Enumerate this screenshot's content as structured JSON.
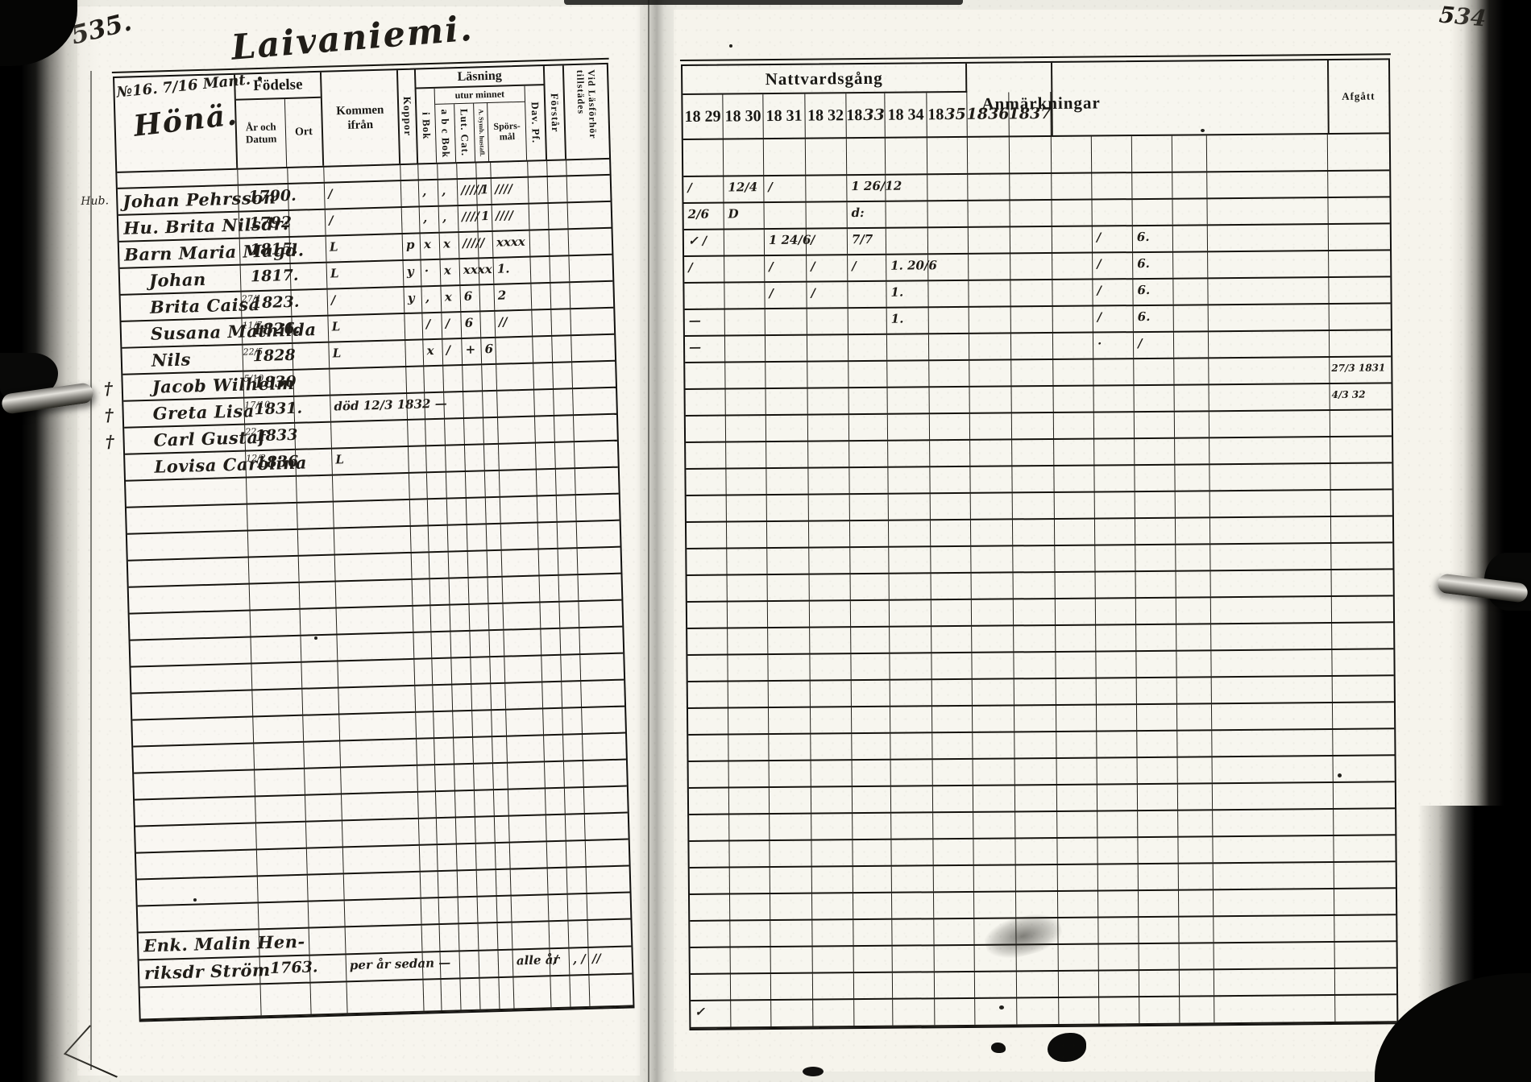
{
  "page": {
    "left_number": "535.",
    "right_number": "534"
  },
  "left_page": {
    "script_title": "Laivaniemi.",
    "household": {
      "no_line": "№16. 7/16 Mant.",
      "name": "Hönä."
    },
    "headers": {
      "fodelse": "Födelse",
      "ar_och_datum": "År och Datum",
      "ort": "Ort",
      "kommen": "Kommen ifrån",
      "koppor": "Koppor",
      "lasning": "Läsning",
      "i_bok": "i Bok",
      "utur_minnet": "utur minnet",
      "abc_bok": "a b c Bok",
      "lut_cat": "Lut. Cat.",
      "symb": "A. Symb. hustafl.",
      "sporsmal": "Spörs- mål",
      "dav": "Dav. Pf.",
      "forstar": "Förstår",
      "vid": "Vid Läsförhör tillstädes"
    },
    "rows": [
      {
        "cross": "",
        "note": "Hub.",
        "ind": 0,
        "name": "Johan Pehrsson",
        "d": "",
        "y": "1790.",
        "marks": [
          "/",
          "",
          ",",
          ",",
          "/////",
          "1",
          "////",
          "",
          "",
          ""
        ]
      },
      {
        "cross": "",
        "note": "",
        "ind": 0,
        "name": "Hu. Brita Nilsdr:",
        "d": "",
        "y": "1792",
        "marks": [
          "/",
          "",
          ",",
          ",",
          "////",
          "1",
          "////",
          "",
          "",
          ""
        ]
      },
      {
        "cross": "",
        "note": "",
        "ind": 0,
        "name": "Barn Maria Magd.",
        "d": "",
        "y": "1815.",
        "marks": [
          "L",
          "p",
          "x",
          "x",
          "/////",
          "",
          "xxxx",
          "",
          "",
          ""
        ]
      },
      {
        "cross": "",
        "note": "",
        "ind": 1,
        "name": "Johan",
        "d": "",
        "y": "1817.",
        "marks": [
          "L",
          "y",
          "·",
          "x",
          "xxxx",
          "",
          "1.",
          "",
          "",
          ""
        ]
      },
      {
        "cross": "",
        "note": "",
        "ind": 1,
        "name": "Brita Caisa",
        "d": "27/1",
        "y": "1823.",
        "marks": [
          "/",
          "y",
          ",",
          "x",
          "6",
          "",
          "2",
          "",
          "",
          ""
        ]
      },
      {
        "cross": "",
        "note": "",
        "ind": 1,
        "name": "Susana Mathilda",
        "d": "11/7",
        "y": "1826.",
        "marks": [
          "L",
          "",
          "/",
          "/",
          "6",
          "",
          "//",
          "",
          "",
          ""
        ]
      },
      {
        "cross": "",
        "note": "",
        "ind": 1,
        "name": "Nils",
        "d": "22/5",
        "y": "1828",
        "marks": [
          "L",
          "",
          "x",
          "/",
          "+",
          "6",
          "",
          "",
          "",
          ""
        ]
      },
      {
        "cross": "†",
        "note": "",
        "ind": 1,
        "name": "Jacob Wilhelm",
        "d": "5/10",
        "y": "1830",
        "marks": [
          "",
          "",
          "",
          "",
          "",
          "",
          "",
          "",
          "",
          ""
        ]
      },
      {
        "cross": "†",
        "note": "",
        "ind": 1,
        "name": "Greta Lisa",
        "d": "17/10",
        "y": "1831.",
        "marks": [
          "död 12/3  1832 —",
          "",
          "",
          "",
          "",
          "",
          "",
          "",
          "",
          ""
        ]
      },
      {
        "cross": "†",
        "note": "",
        "ind": 1,
        "name": "Carl Gustaf",
        "d": "22",
        "y": "1833",
        "marks": [
          "",
          "",
          "",
          "",
          "",
          "",
          "",
          "",
          "",
          ""
        ]
      },
      {
        "cross": "",
        "note": "",
        "ind": 1,
        "name": "Lovisa Carolina",
        "d": "12/2",
        "y": "1836",
        "marks": [
          "L",
          "",
          "",
          "",
          "",
          "",
          "",
          "",
          "",
          ""
        ]
      }
    ],
    "bottom_rows": [
      {
        "cross": "",
        "note": "",
        "ind": 0,
        "name": "Enk. Malin Hen-",
        "d": "",
        "y": "",
        "marks": [
          "",
          "",
          "",
          "",
          "",
          "",
          "",
          "",
          "",
          ""
        ]
      },
      {
        "cross": "",
        "note": "",
        "ind": 0,
        "name": "riksdr Ström",
        "d": "",
        "y": "1763.",
        "marks": [
          "per år sedan —",
          "",
          "",
          "",
          "",
          "",
          "alle år",
          "/",
          ", /",
          "//"
        ]
      }
    ],
    "layout": {
      "empty_rows_mid": 17,
      "empty_rows_tail": 1
    }
  },
  "right_page": {
    "headers": {
      "nattvardsgang": "Nattvardsgång",
      "anmarkningar": "Anmärkningar",
      "afgatt": "Afgått"
    },
    "year_labels_printed": [
      "18 29",
      "18 30",
      "18 31",
      "18 32",
      "18|33",
      "18 34",
      "18|35"
    ],
    "year_labels_written": [
      "1836",
      "1837"
    ],
    "rows": [
      {
        "marks": [
          "/",
          "12/4",
          "/",
          "",
          "1 26/12",
          "",
          "",
          "",
          "",
          "",
          "",
          "",
          "",
          "",
          ""
        ]
      },
      {
        "marks": [
          "2/6",
          "D",
          "",
          "",
          "d:",
          "",
          "",
          "",
          "",
          "",
          "",
          "",
          "",
          "",
          ""
        ]
      },
      {
        "marks": [
          "✓ /",
          "",
          "1 24/6",
          "/",
          "7/7",
          "",
          "",
          "",
          "",
          "",
          "/",
          "6.",
          "",
          "",
          ""
        ]
      },
      {
        "marks": [
          "/",
          "",
          "/",
          "/",
          "/",
          "1. 20/6",
          "",
          "",
          "",
          "",
          "/",
          "6.",
          "",
          "",
          ""
        ]
      },
      {
        "marks": [
          "",
          "",
          "/",
          "/",
          "",
          "1.",
          "",
          "",
          "",
          "",
          "/",
          "6.",
          "",
          "",
          ""
        ]
      },
      {
        "marks": [
          "—",
          "",
          "",
          "",
          "",
          "1.",
          "",
          "",
          "",
          "",
          "/",
          "6.",
          "",
          "",
          ""
        ]
      },
      {
        "marks": [
          "—",
          "",
          "",
          "",
          "",
          "",
          "",
          "",
          "",
          "",
          "·",
          "/",
          "",
          "",
          ""
        ]
      },
      {
        "marks": [
          "",
          "",
          "",
          "",
          "",
          "",
          "",
          "",
          "",
          "",
          "",
          "",
          "",
          "",
          "27/3 1831"
        ]
      },
      {
        "marks": [
          "",
          "",
          "",
          "",
          "",
          "",
          "",
          "",
          "",
          "",
          "",
          "",
          "",
          "",
          "4/3 32"
        ]
      },
      {
        "marks": [
          "",
          "",
          "",
          "",
          "",
          "",
          "",
          "",
          "",
          "",
          "",
          "",
          "",
          "",
          ""
        ]
      }
    ],
    "bottom_row": {
      "marks": [
        "✓",
        "",
        "",
        "",
        "",
        "",
        "",
        "",
        "",
        "",
        "",
        "",
        "",
        "",
        ""
      ]
    },
    "layout": {
      "total_body_rows": 33
    }
  }
}
